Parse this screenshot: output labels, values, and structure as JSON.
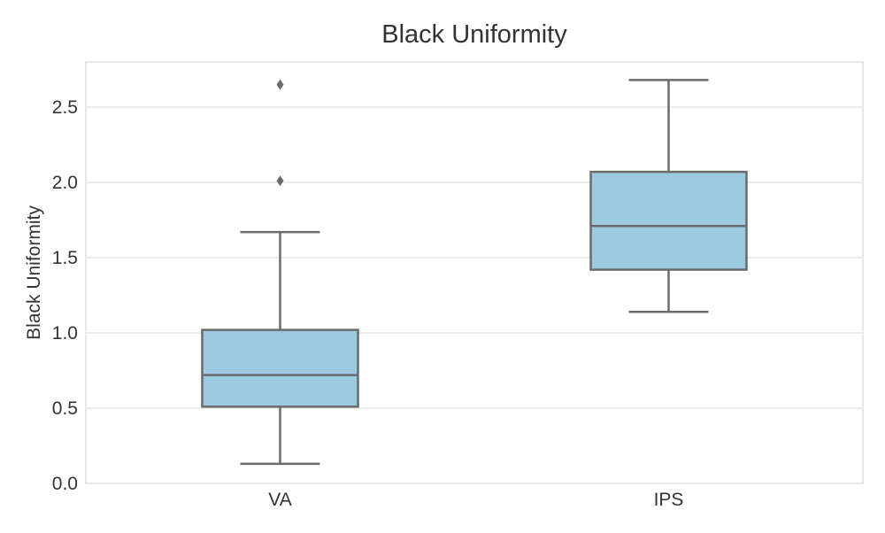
{
  "chart_data": {
    "type": "box",
    "title": "Black Uniformity",
    "xlabel": "",
    "ylabel": "Black Uniformity",
    "categories": [
      "VA",
      "IPS"
    ],
    "ylim": [
      0,
      2.8
    ],
    "yticks": [
      "0.0",
      "0.5",
      "1.0",
      "1.5",
      "2.0",
      "2.5"
    ],
    "grid": true,
    "box_color": "#9ccae1",
    "line_color": "#6b6b6b",
    "series": [
      {
        "category": "VA",
        "whisker_low": 0.13,
        "q1": 0.51,
        "median": 0.72,
        "q3": 1.02,
        "whisker_high": 1.67,
        "outliers": [
          2.01,
          2.65
        ]
      },
      {
        "category": "IPS",
        "whisker_low": 1.14,
        "q1": 1.42,
        "median": 1.71,
        "q3": 2.07,
        "whisker_high": 2.68,
        "outliers": []
      }
    ]
  }
}
